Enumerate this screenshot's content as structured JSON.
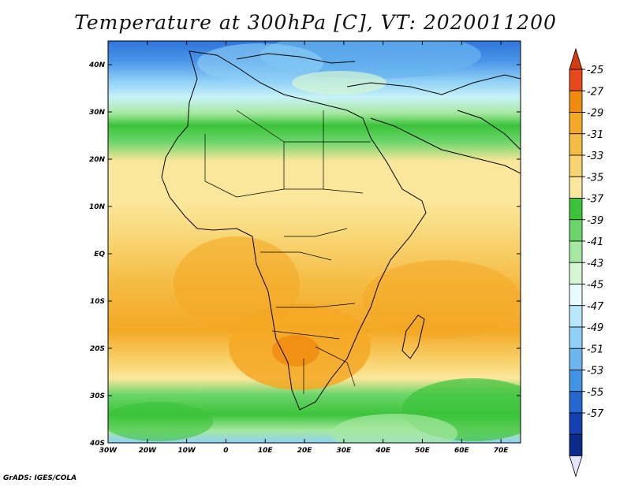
{
  "title": "Temperature at 300hPa [C], VT: 2020011200",
  "credit": "GrADS: IGES/COLA",
  "lon_labels": [
    "30W",
    "20W",
    "10W",
    "0",
    "10E",
    "20E",
    "30E",
    "40E",
    "50E",
    "60E",
    "70E"
  ],
  "lat_labels": [
    "40N",
    "30N",
    "20N",
    "10N",
    "EQ",
    "10S",
    "20S",
    "30S",
    "40S"
  ],
  "colorbar": {
    "labels": [
      "-25",
      "-27",
      "-29",
      "-31",
      "-33",
      "-35",
      "-37",
      "-39",
      "-41",
      "-43",
      "-45",
      "-47",
      "-49",
      "-51",
      "-53",
      "-55",
      "-57"
    ],
    "colors": [
      "#e8491b",
      "#f08a10",
      "#f4a825",
      "#f5bc45",
      "#f8d470",
      "#fbe79c",
      "#3cc33a",
      "#6ad56a",
      "#a6e8a1",
      "#d6f7d3",
      "#e7fbff",
      "#b6e7fb",
      "#8fd0f6",
      "#69b6f0",
      "#4193e6",
      "#2367d1",
      "#1441b2",
      "#0b2a8c"
    ],
    "top_arrow": "#d23a12",
    "bottom_arrow": "#e6e4fb"
  },
  "chart_data": {
    "type": "heatmap",
    "title": "Temperature at 300hPa [C], VT: 2020011200",
    "variable": "Temperature at 300hPa",
    "units": "C",
    "valid_time": "2020011200",
    "lon_range": [
      -30,
      75
    ],
    "lat_range": [
      -40,
      45
    ],
    "contour_levels": [
      -57,
      -55,
      -53,
      -51,
      -49,
      -47,
      -45,
      -43,
      -41,
      -39,
      -37,
      -35,
      -33,
      -31,
      -29,
      -27,
      -25
    ],
    "bands": [
      {
        "region": "north of 35N",
        "value_range": [
          -51,
          -43
        ]
      },
      {
        "region": "30N-35N",
        "value_range": [
          -43,
          -37
        ]
      },
      {
        "region": "20N-30N",
        "value_range": [
          -35,
          -33
        ]
      },
      {
        "region": "5S-20S southern Africa",
        "value_range": [
          -31,
          -27
        ]
      },
      {
        "region": "35S-40S",
        "value_range": [
          -39,
          -35
        ]
      }
    ]
  }
}
